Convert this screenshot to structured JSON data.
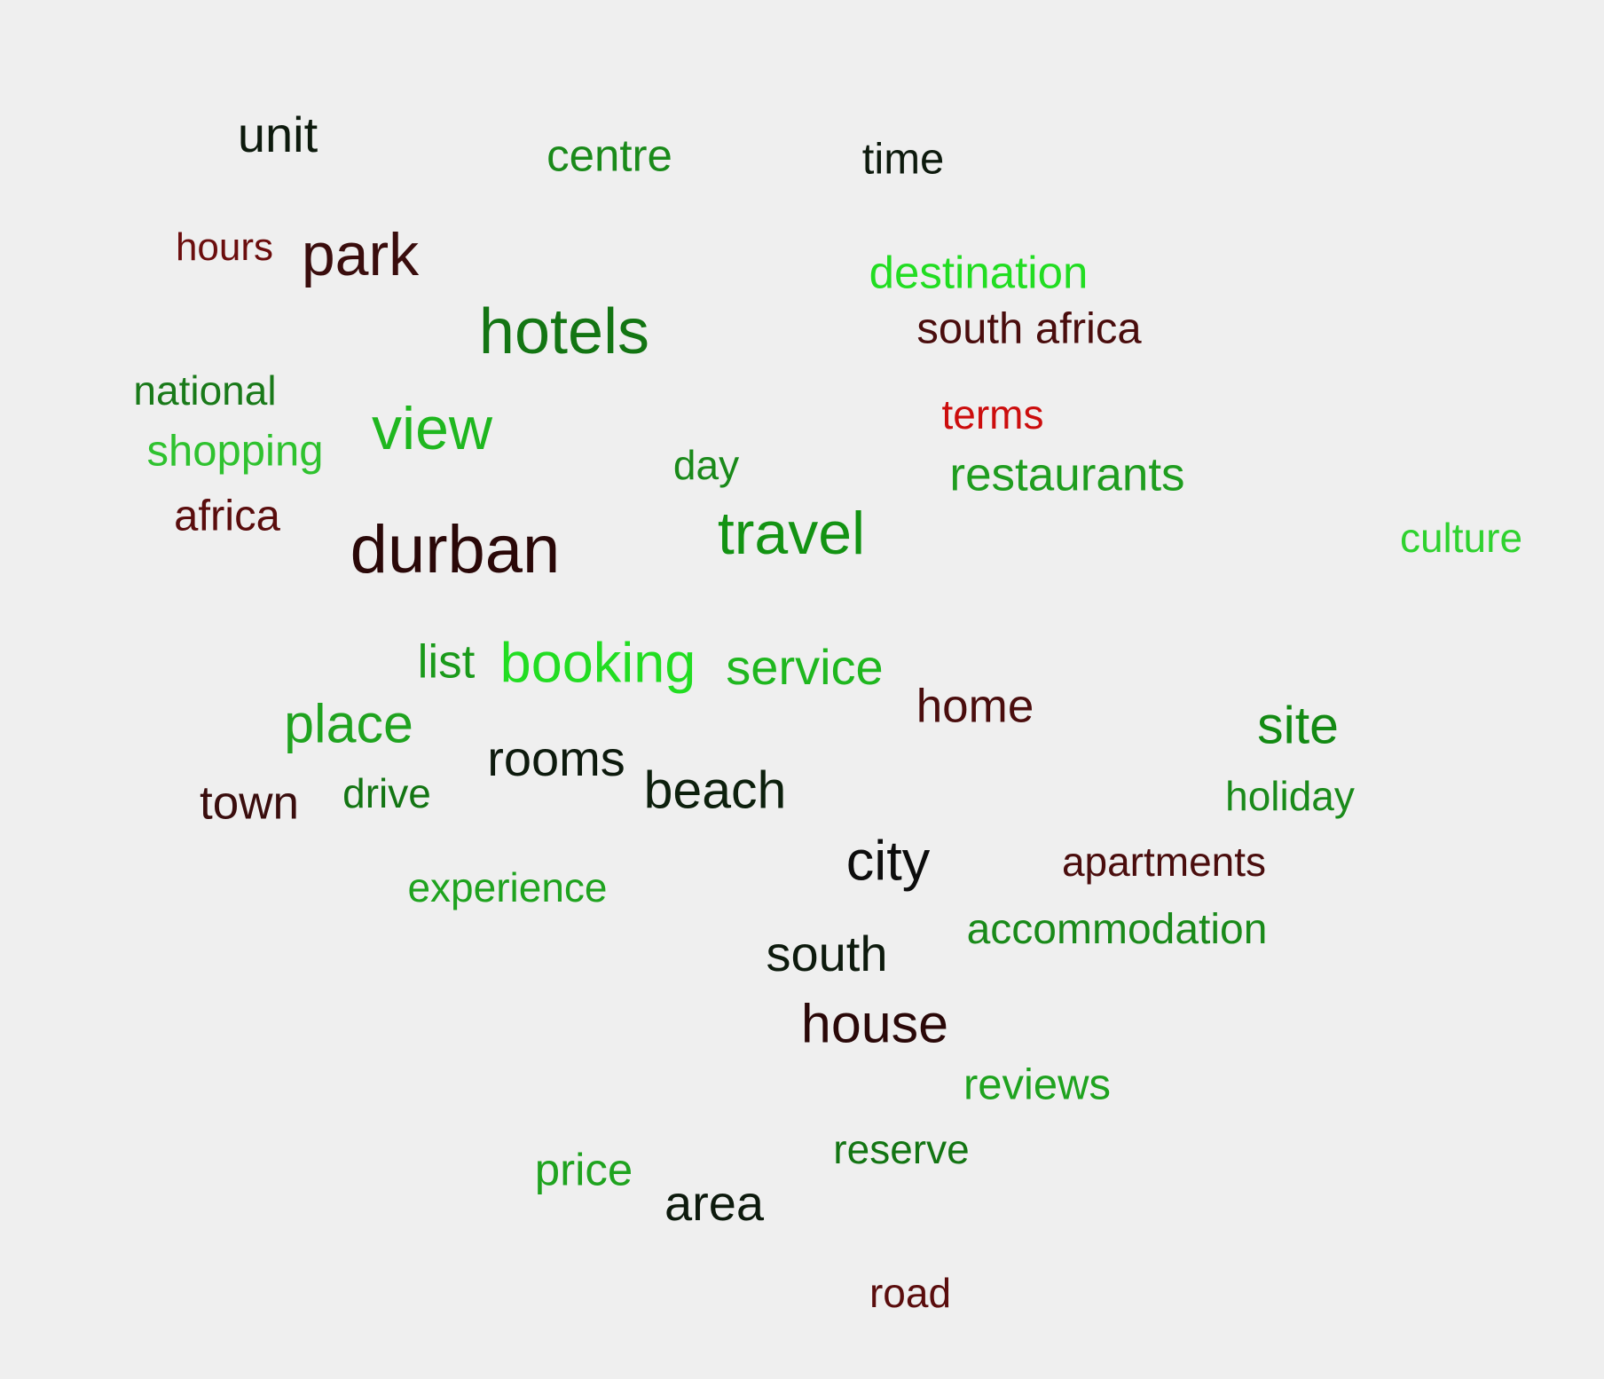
{
  "words": [
    {
      "text": "unit",
      "color": "#0d1a0d"
    },
    {
      "text": "centre",
      "color": "#1a8a1a"
    },
    {
      "text": "time",
      "color": "#0d1a0d"
    },
    {
      "text": "hours",
      "color": "#6b0d0d"
    },
    {
      "text": "park",
      "color": "#3a0d0d"
    },
    {
      "text": "destination",
      "color": "#22dd22"
    },
    {
      "text": "hotels",
      "color": "#137513"
    },
    {
      "text": "south africa",
      "color": "#4a0d0d"
    },
    {
      "text": "national",
      "color": "#1a7a1a"
    },
    {
      "text": "view",
      "color": "#1fb71f"
    },
    {
      "text": "terms",
      "color": "#cc0d0d"
    },
    {
      "text": "shopping",
      "color": "#2fc22f"
    },
    {
      "text": "day",
      "color": "#1a8a1a"
    },
    {
      "text": "restaurants",
      "color": "#1f9d1f"
    },
    {
      "text": "africa",
      "color": "#5a0d0d"
    },
    {
      "text": "travel",
      "color": "#139313"
    },
    {
      "text": "durban",
      "color": "#2a0808"
    },
    {
      "text": "culture",
      "color": "#2fd22f"
    },
    {
      "text": "list",
      "color": "#1a9a1a"
    },
    {
      "text": "booking",
      "color": "#22dd22"
    },
    {
      "text": "service",
      "color": "#1fb71f"
    },
    {
      "text": "home",
      "color": "#4a0d0d"
    },
    {
      "text": "place",
      "color": "#1fa31f"
    },
    {
      "text": "site",
      "color": "#138a13"
    },
    {
      "text": "rooms",
      "color": "#0d1a0d"
    },
    {
      "text": "beach",
      "color": "#0d200d"
    },
    {
      "text": "town",
      "color": "#3a0d0d"
    },
    {
      "text": "drive",
      "color": "#137513"
    },
    {
      "text": "holiday",
      "color": "#1a8a1a"
    },
    {
      "text": "city",
      "color": "#0d0d0d"
    },
    {
      "text": "apartments",
      "color": "#4a0d0d"
    },
    {
      "text": "experience",
      "color": "#1fa31f"
    },
    {
      "text": "accommodation",
      "color": "#1a8a1a"
    },
    {
      "text": "south",
      "color": "#0d1a0d"
    },
    {
      "text": "house",
      "color": "#2a0808"
    },
    {
      "text": "reviews",
      "color": "#1fa31f"
    },
    {
      "text": "reserve",
      "color": "#137513"
    },
    {
      "text": "price",
      "color": "#1fa31f"
    },
    {
      "text": "area",
      "color": "#0d1a0d"
    },
    {
      "text": "road",
      "color": "#5a0d0d"
    }
  ]
}
